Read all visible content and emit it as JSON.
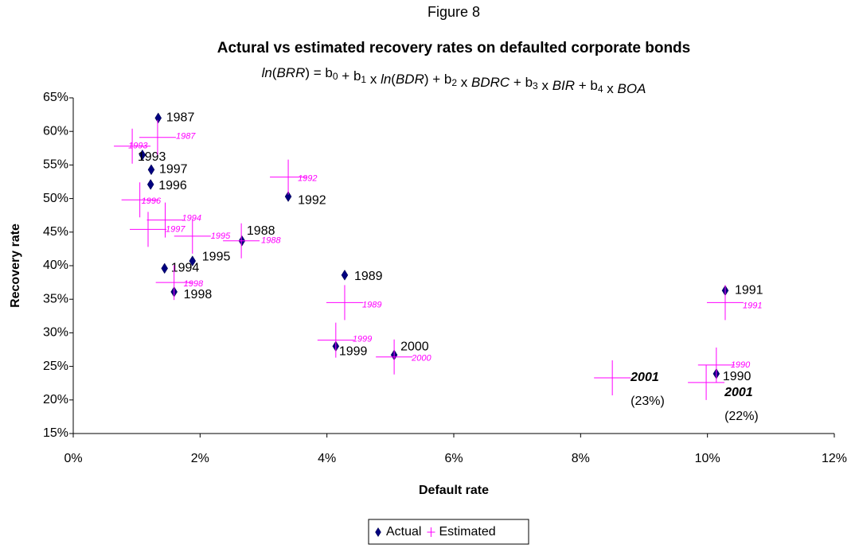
{
  "chart_data": {
    "type": "scatter",
    "figure_label": "Figure 8",
    "title": "Actural vs estimated recovery rates on defaulted corporate bonds",
    "subtitle": "ln(BRR) = b0 + b1 x ln(BDR) + b2 x BDRC + b3 x BIR + b4 x BOA",
    "xlabel": "Default rate",
    "ylabel": "Recovery rate",
    "xlim": [
      0,
      12
    ],
    "ylim": [
      15,
      65
    ],
    "xticks": [
      {
        "value": 0,
        "label": "0%"
      },
      {
        "value": 2,
        "label": "2%"
      },
      {
        "value": 4,
        "label": "4%"
      },
      {
        "value": 6,
        "label": "6%"
      },
      {
        "value": 8,
        "label": "8%"
      },
      {
        "value": 10,
        "label": "10%"
      },
      {
        "value": 12,
        "label": "12%"
      }
    ],
    "yticks": [
      {
        "value": 15,
        "label": "15%"
      },
      {
        "value": 20,
        "label": "20%"
      },
      {
        "value": 25,
        "label": "25%"
      },
      {
        "value": 30,
        "label": "30%"
      },
      {
        "value": 35,
        "label": "35%"
      },
      {
        "value": 40,
        "label": "40%"
      },
      {
        "value": 45,
        "label": "45%"
      },
      {
        "value": 50,
        "label": "50%"
      },
      {
        "value": 55,
        "label": "55%"
      },
      {
        "value": 60,
        "label": "60%"
      },
      {
        "value": 65,
        "label": "65%"
      }
    ],
    "legend": "bottom",
    "series": [
      {
        "name": "Actual",
        "color": "#000080",
        "marker": "diamond",
        "labels": [
          "1987",
          "1993",
          "1997",
          "1996",
          "1992",
          "1988",
          "1995",
          "1994",
          "1998",
          "1989",
          "1999",
          "2000",
          "1991",
          "1990"
        ],
        "x": [
          1.34,
          1.09,
          1.23,
          1.22,
          3.39,
          2.66,
          1.88,
          1.44,
          1.59,
          4.28,
          4.14,
          5.06,
          10.28,
          10.14
        ],
        "values": [
          62.0,
          56.5,
          54.3,
          52.1,
          50.3,
          43.7,
          40.7,
          39.6,
          36.1,
          38.6,
          28.0,
          26.7,
          36.3,
          23.9
        ]
      },
      {
        "name": "Estimated",
        "color": "#ff00ff",
        "marker": "cross",
        "labels": [
          "1987",
          "1993",
          "1996",
          "1994",
          "1997",
          "1995",
          "1988",
          "1992",
          "1998",
          "1989",
          "1999",
          "2000",
          "1991",
          "1990",
          "2001",
          "2001"
        ],
        "notes": [
          null,
          null,
          null,
          null,
          null,
          null,
          null,
          null,
          null,
          null,
          null,
          null,
          null,
          null,
          "(23%)",
          "(22%)"
        ],
        "x": [
          1.33,
          0.93,
          1.05,
          1.45,
          1.18,
          1.88,
          2.65,
          3.39,
          1.59,
          4.28,
          4.14,
          5.06,
          10.28,
          10.14,
          8.5,
          9.98
        ],
        "values": [
          59.1,
          57.8,
          49.8,
          46.8,
          45.4,
          44.4,
          43.7,
          53.2,
          37.5,
          34.5,
          28.9,
          26.4,
          34.5,
          25.2,
          23.3,
          22.6
        ]
      }
    ]
  }
}
